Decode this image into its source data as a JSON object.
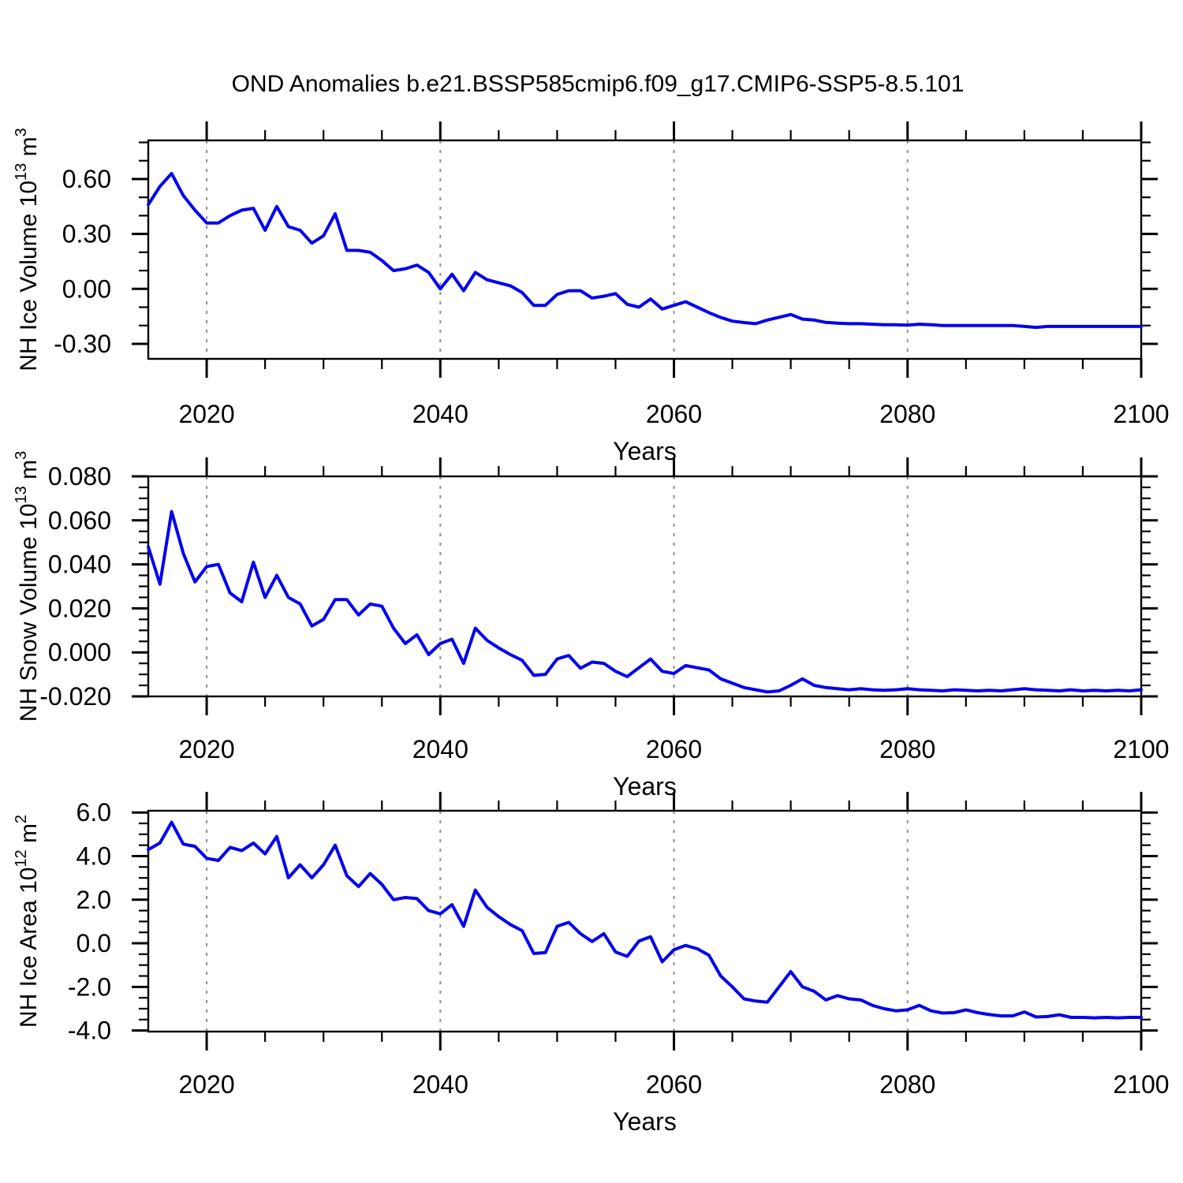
{
  "title": "OND Anomalies b.e21.BSSP585cmip6.f09_g17.CMIP6-SSP5-8.5.101",
  "colors": {
    "line": "#0000ee",
    "frame": "#000000",
    "grid": "#909090",
    "background": "#ffffff"
  },
  "chart_data": [
    {
      "type": "line",
      "title": "OND Anomalies b.e21.BSSP585cmip6.f09_g17.CMIP6-SSP5-8.5.101",
      "xlabel": "Years",
      "ylabel": {
        "base": "NH Ice Volume 10",
        "exp": "13",
        "unit": " m",
        "unit_exp": "3"
      },
      "xlim": [
        2015,
        2100
      ],
      "x_step": 1,
      "ylim": [
        -0.382,
        0.811
      ],
      "grid": "dashed-vertical",
      "grid_years": [
        2020,
        2040,
        2060,
        2080
      ],
      "x_major_ticks": [
        2020,
        2040,
        2060,
        2080,
        2100
      ],
      "x_minor_step": 5,
      "y_major_ticks": [
        0.6,
        0.3,
        0.0,
        -0.3
      ],
      "y_tick_labels": [
        "0.60",
        "0.30",
        "0.00",
        "-0.30"
      ],
      "y_minor_step": 0.1,
      "legend": "none",
      "values": [
        0.46,
        0.56,
        0.63,
        0.51,
        0.43,
        0.36,
        0.36,
        0.4,
        0.43,
        0.44,
        0.32,
        0.45,
        0.34,
        0.32,
        0.25,
        0.29,
        0.41,
        0.21,
        0.21,
        0.2,
        0.155,
        0.1,
        0.11,
        0.13,
        0.09,
        0.0,
        0.08,
        -0.01,
        0.09,
        0.05,
        0.033,
        0.017,
        -0.02,
        -0.09,
        -0.09,
        -0.03,
        -0.01,
        -0.01,
        -0.05,
        -0.04,
        -0.026,
        -0.084,
        -0.1,
        -0.055,
        -0.11,
        -0.09,
        -0.07,
        -0.1,
        -0.13,
        -0.156,
        -0.176,
        -0.184,
        -0.19,
        -0.17,
        -0.155,
        -0.14,
        -0.165,
        -0.17,
        -0.183,
        -0.187,
        -0.19,
        -0.19,
        -0.193,
        -0.196,
        -0.196,
        -0.198,
        -0.193,
        -0.196,
        -0.2,
        -0.2,
        -0.2,
        -0.2,
        -0.2,
        -0.2,
        -0.2,
        -0.205,
        -0.21,
        -0.205,
        -0.205,
        -0.205,
        -0.205,
        -0.205,
        -0.205,
        -0.205,
        -0.205,
        -0.205
      ]
    },
    {
      "type": "line",
      "title": "",
      "xlabel": "Years",
      "ylabel": {
        "base": "NH Snow Volume 10",
        "exp": "13",
        "unit": " m",
        "unit_exp": "3"
      },
      "xlim": [
        2015,
        2100
      ],
      "x_step": 1,
      "ylim": [
        -0.02,
        0.08
      ],
      "grid": "dashed-vertical",
      "grid_years": [
        2020,
        2040,
        2060,
        2080
      ],
      "x_major_ticks": [
        2020,
        2040,
        2060,
        2080,
        2100
      ],
      "x_minor_step": 5,
      "y_major_ticks": [
        0.08,
        0.06,
        0.04,
        0.02,
        0.0,
        -0.02
      ],
      "y_tick_labels": [
        "0.080",
        "0.060",
        "0.040",
        "0.020",
        "0.000",
        "-0.020"
      ],
      "y_minor_step": 0.005,
      "legend": "none",
      "values": [
        0.048,
        0.031,
        0.064,
        0.045,
        0.032,
        0.039,
        0.04,
        0.027,
        0.023,
        0.041,
        0.025,
        0.035,
        0.025,
        0.022,
        0.012,
        0.015,
        0.024,
        0.024,
        0.017,
        0.022,
        0.021,
        0.011,
        0.004,
        0.008,
        -0.001,
        0.004,
        0.006,
        -0.005,
        0.011,
        0.0055,
        0.002,
        -0.001,
        -0.0036,
        -0.0104,
        -0.01,
        -0.003,
        -0.0014,
        -0.0072,
        -0.0044,
        -0.005,
        -0.0086,
        -0.011,
        -0.007,
        -0.003,
        -0.0086,
        -0.0096,
        -0.006,
        -0.007,
        -0.008,
        -0.012,
        -0.014,
        -0.016,
        -0.017,
        -0.018,
        -0.0175,
        -0.015,
        -0.012,
        -0.015,
        -0.016,
        -0.0165,
        -0.017,
        -0.0165,
        -0.017,
        -0.0172,
        -0.017,
        -0.0165,
        -0.017,
        -0.0172,
        -0.0175,
        -0.017,
        -0.0172,
        -0.0175,
        -0.0172,
        -0.0175,
        -0.017,
        -0.0165,
        -0.017,
        -0.0172,
        -0.0175,
        -0.017,
        -0.0175,
        -0.0172,
        -0.0175,
        -0.0172,
        -0.0175,
        -0.017
      ]
    },
    {
      "type": "line",
      "title": "",
      "xlabel": "Years",
      "ylabel": {
        "base": "NH Ice Area 10",
        "exp": "12",
        "unit": " m",
        "unit_exp": "2"
      },
      "xlim": [
        2015,
        2100
      ],
      "x_step": 1,
      "ylim": [
        -4.05,
        6.08
      ],
      "grid": "dashed-vertical",
      "grid_years": [
        2020,
        2040,
        2060,
        2080
      ],
      "x_major_ticks": [
        2020,
        2040,
        2060,
        2080,
        2100
      ],
      "x_minor_step": 5,
      "y_major_ticks": [
        6.0,
        4.0,
        2.0,
        0.0,
        -2.0,
        -4.0
      ],
      "y_tick_labels": [
        "6.0",
        "4.0",
        "2.0",
        "0.0",
        "-2.0",
        "-4.0"
      ],
      "y_minor_step": 0.5,
      "legend": "none",
      "values": [
        4.3,
        4.6,
        5.55,
        4.55,
        4.45,
        3.9,
        3.8,
        4.4,
        4.25,
        4.6,
        4.1,
        4.9,
        3.0,
        3.6,
        3.0,
        3.6,
        4.5,
        3.1,
        2.6,
        3.2,
        2.7,
        2.0,
        2.1,
        2.05,
        1.5,
        1.35,
        1.77,
        0.78,
        2.44,
        1.65,
        1.22,
        0.86,
        0.58,
        -0.47,
        -0.43,
        0.78,
        0.96,
        0.44,
        0.08,
        0.44,
        -0.4,
        -0.6,
        0.1,
        0.3,
        -0.85,
        -0.3,
        -0.1,
        -0.25,
        -0.55,
        -1.5,
        -2.0,
        -2.55,
        -2.65,
        -2.7,
        -2.0,
        -1.3,
        -2.0,
        -2.2,
        -2.6,
        -2.4,
        -2.55,
        -2.6,
        -2.85,
        -3.0,
        -3.1,
        -3.05,
        -2.85,
        -3.1,
        -3.2,
        -3.18,
        -3.05,
        -3.18,
        -3.27,
        -3.33,
        -3.33,
        -3.15,
        -3.38,
        -3.36,
        -3.28,
        -3.4,
        -3.4,
        -3.42,
        -3.4,
        -3.42,
        -3.4,
        -3.4
      ]
    }
  ]
}
